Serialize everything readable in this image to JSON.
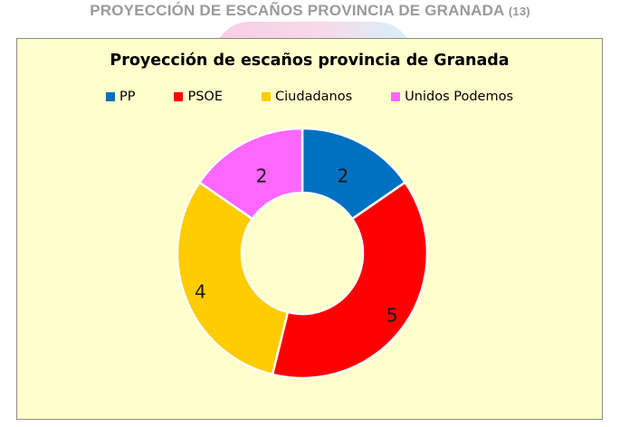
{
  "page": {
    "heading": "PROYECCIÓN DE ESCAÑOS PROVINCIA DE GRANADA",
    "heading_count": "(13)"
  },
  "chart_data": {
    "type": "pie",
    "variant": "donut",
    "title": "Proyección de escaños provincia de Granada",
    "legend_position": "top",
    "categories": [
      "PP",
      "PSOE",
      "Ciudadanos",
      "Unidos Podemos"
    ],
    "values": [
      2,
      5,
      4,
      2
    ],
    "colors": [
      "#0070c0",
      "#ff0000",
      "#ffcc00",
      "#ff66ff"
    ],
    "data_labels": [
      "2",
      "5",
      "4",
      "2"
    ]
  }
}
